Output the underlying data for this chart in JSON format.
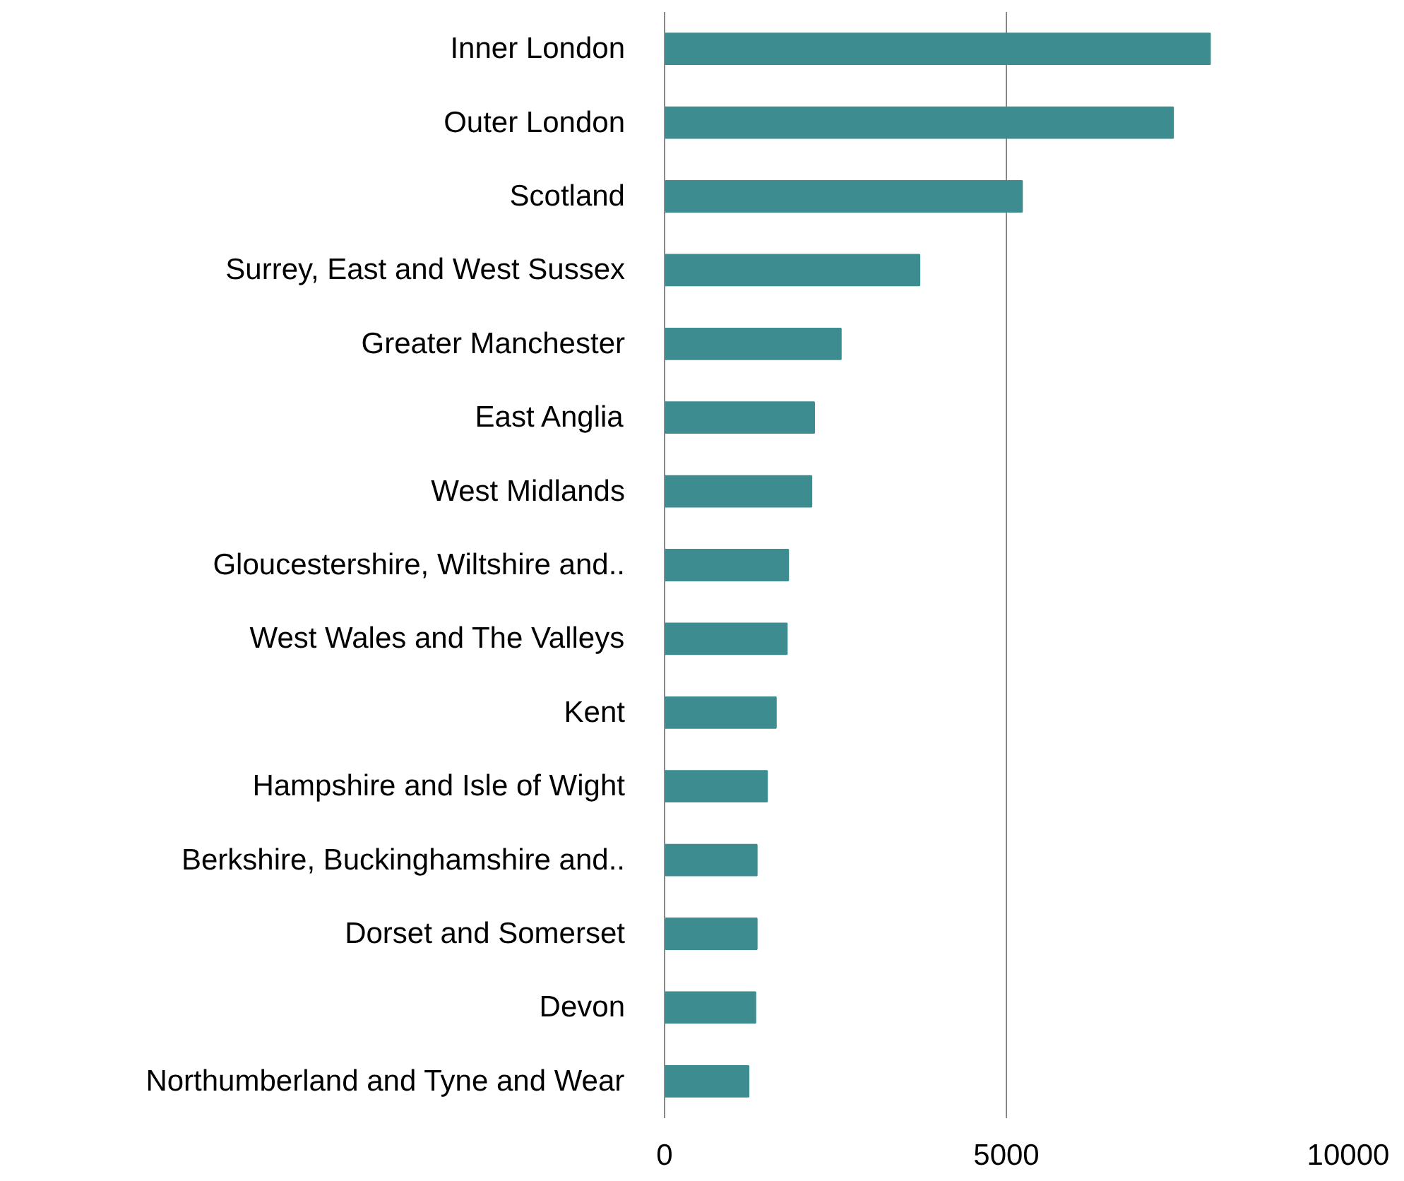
{
  "chart_data": {
    "type": "bar",
    "orientation": "horizontal",
    "categories": [
      "Inner London",
      "Outer London",
      "Scotland",
      "Surrey, East and West Sussex",
      "Greater Manchester",
      "East Anglia",
      "West Midlands",
      "Gloucestershire, Wiltshire and..",
      "West Wales and The Valleys",
      "Kent",
      "Hampshire and Isle of Wight",
      "Berkshire, Buckinghamshire and..",
      "Dorset and Somerset",
      "Devon",
      "Northumberland and Tyne and Wear"
    ],
    "values": [
      7980,
      7440,
      5230,
      3730,
      2580,
      2190,
      2150,
      1810,
      1790,
      1630,
      1500,
      1350,
      1350,
      1330,
      1230
    ],
    "color": "#3d8c8f",
    "xlim": [
      0,
      10000
    ],
    "xticks": [
      0,
      5000,
      10000
    ],
    "grid": "x"
  }
}
